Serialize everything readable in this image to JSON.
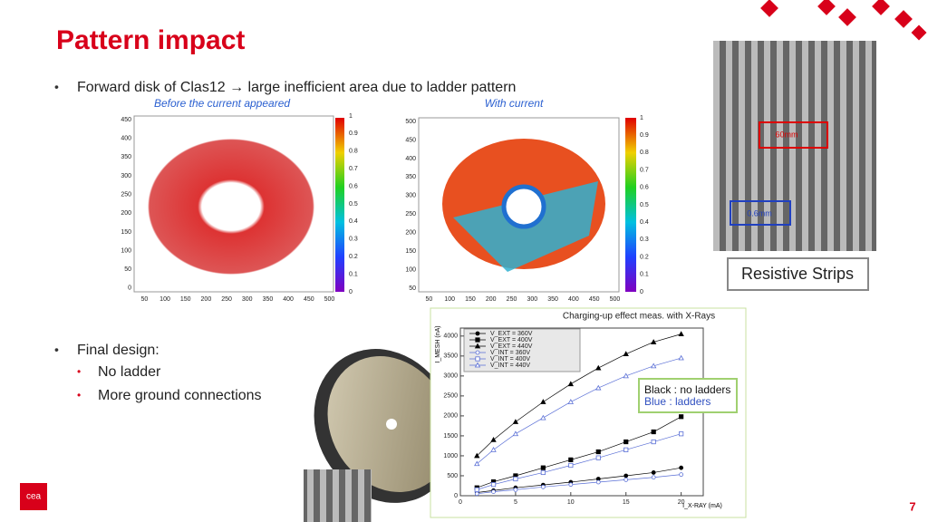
{
  "title": "Pattern impact",
  "bullet": "Forward disk of Clas12 → large inefficient area due to ladder pattern",
  "maps": [
    {
      "title": "Before the current appeared",
      "xticks": [
        50,
        100,
        150,
        200,
        250,
        300,
        350,
        400,
        450,
        500
      ],
      "yticks": [
        0,
        50,
        100,
        150,
        200,
        250,
        300,
        350,
        400,
        450
      ],
      "colorbar": [
        0,
        0.1,
        0.2,
        0.3,
        0.4,
        0.5,
        0.6,
        0.7,
        0.8,
        0.9,
        1
      ]
    },
    {
      "title": "With current",
      "xticks": [
        50,
        100,
        150,
        200,
        250,
        300,
        350,
        400,
        450,
        500
      ],
      "yticks": [
        50,
        100,
        150,
        200,
        250,
        300,
        350,
        400,
        450,
        500
      ],
      "colorbar": [
        0,
        0.1,
        0.2,
        0.3,
        0.4,
        0.5,
        0.6,
        0.7,
        0.8,
        0.9,
        1
      ]
    }
  ],
  "strips": {
    "pitch": "60mm",
    "width": "0.6mm",
    "caption": "Resistive Strips"
  },
  "final": {
    "text": "Final design:",
    "items": [
      "No ladder",
      "More ground connections"
    ]
  },
  "chart": {
    "type": "line",
    "title": "Charging-up effect meas. with X-Rays",
    "y_label": "I_MESH (nA)",
    "x_label": "I_X-RAY (mA)",
    "annotations": [
      "Black : no ladders",
      "Blue : ladders"
    ],
    "x": [
      1.5,
      3,
      5,
      7.5,
      10,
      12.5,
      15,
      17.5,
      20
    ],
    "xlim": [
      0,
      22
    ],
    "ylim": [
      0,
      4200
    ],
    "xticks": [
      0,
      5,
      10,
      15,
      20
    ],
    "yticks": [
      0,
      500,
      1000,
      1500,
      2000,
      2500,
      3000,
      3500,
      4000
    ],
    "series": [
      {
        "name": "V_EXT = 360V",
        "color": "#000000",
        "values": [
          80,
          130,
          200,
          270,
          340,
          420,
          500,
          580,
          700
        ]
      },
      {
        "name": "V_EXT = 400V",
        "color": "#000000",
        "values": [
          200,
          350,
          500,
          700,
          900,
          1100,
          1350,
          1600,
          1980
        ]
      },
      {
        "name": "V_EXT = 440V",
        "color": "#000000",
        "values": [
          1000,
          1400,
          1850,
          2350,
          2800,
          3200,
          3550,
          3850,
          4050
        ]
      },
      {
        "name": "V_INT = 360V",
        "color": "#5a6fd6",
        "values": [
          50,
          100,
          150,
          220,
          280,
          340,
          400,
          460,
          530
        ]
      },
      {
        "name": "V_INT = 400V",
        "color": "#5a6fd6",
        "values": [
          150,
          280,
          420,
          580,
          760,
          950,
          1150,
          1350,
          1550
        ]
      },
      {
        "name": "V_INT = 440V",
        "color": "#5a6fd6",
        "values": [
          800,
          1150,
          1550,
          1950,
          2350,
          2700,
          3000,
          3250,
          3450
        ]
      }
    ]
  },
  "logo": "cea",
  "page_number": "7"
}
